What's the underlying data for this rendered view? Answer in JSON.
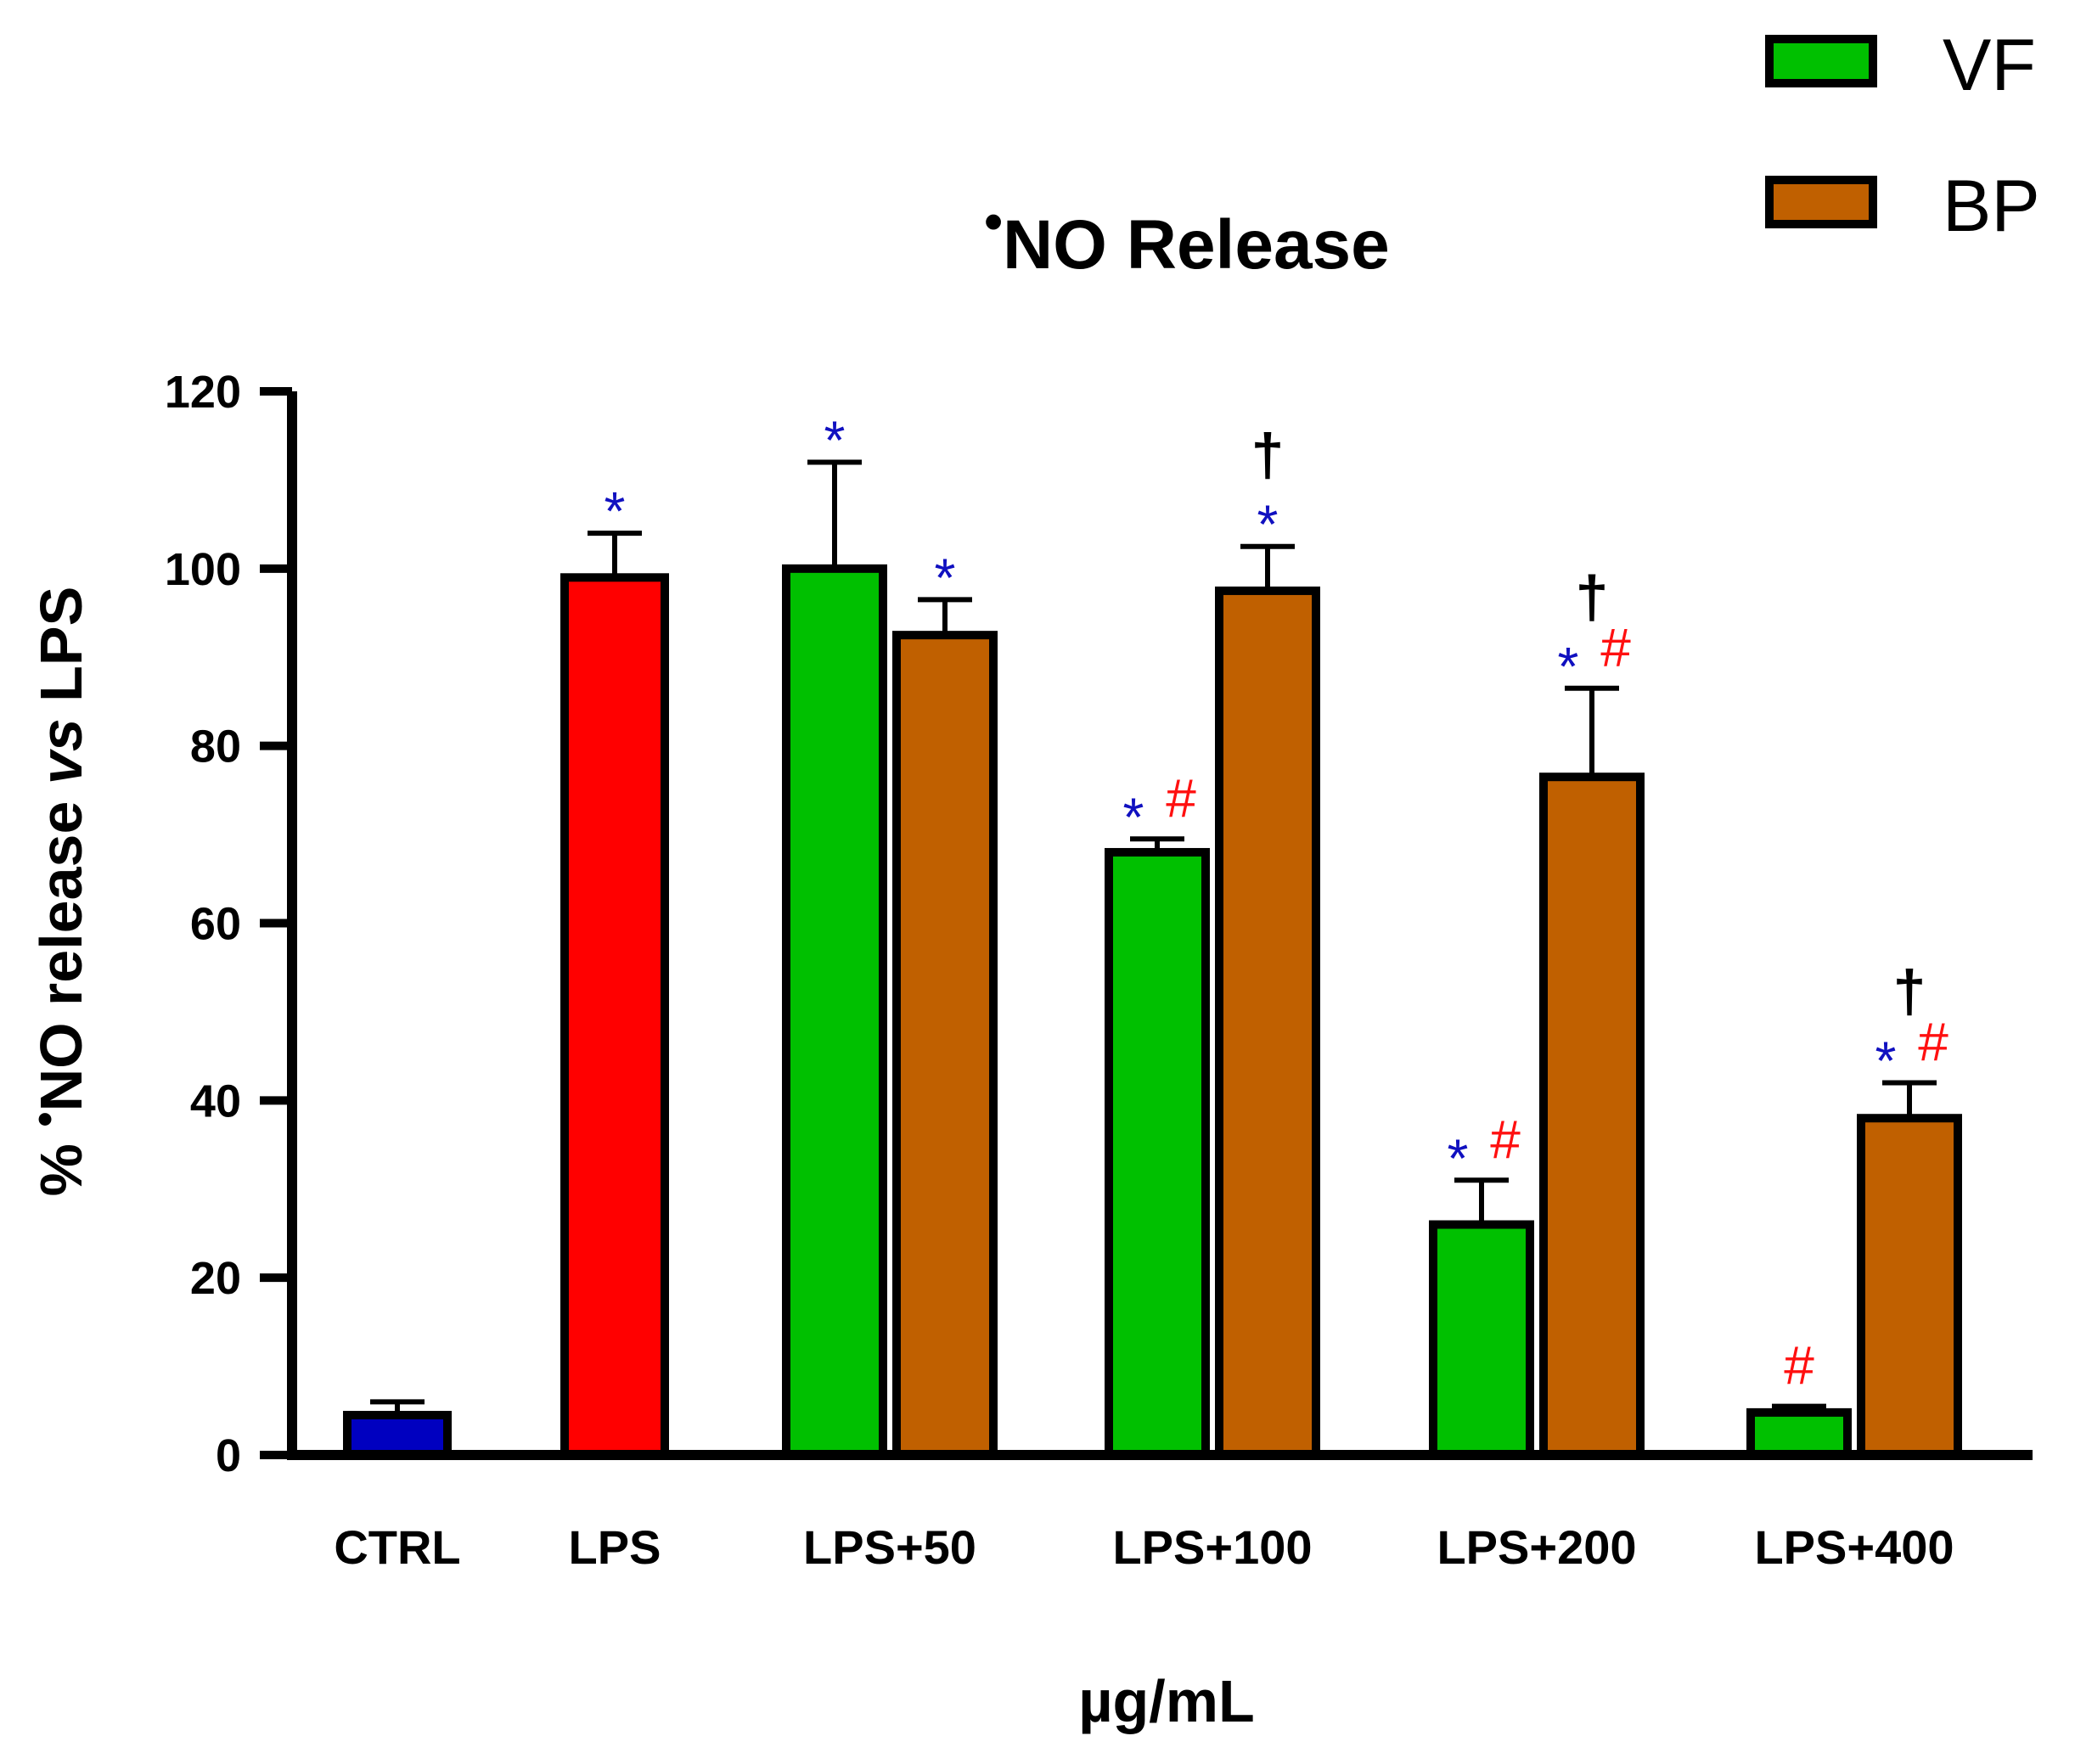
{
  "chart_data": {
    "type": "bar",
    "title": "NO Release",
    "title_radical_dot": "•",
    "ylabel_prefix": "% ",
    "ylabel_dot": "•",
    "ylabel_main": "NO release ",
    "ylabel_italic": "vs",
    "ylabel_suffix": " LPS",
    "xlabel": "µg/mL",
    "ylim": [
      0,
      120
    ],
    "yticks": [
      0,
      20,
      40,
      60,
      80,
      100,
      120
    ],
    "ytick_labels": [
      "0",
      "20",
      "40",
      "60",
      "80",
      "100",
      "120"
    ],
    "categories": [
      "CTRL",
      "LPS",
      "LPS+50",
      "LPS+100",
      "LPS+200",
      "LPS+400"
    ],
    "legend": [
      {
        "label": "VF",
        "color": "#00c000"
      },
      {
        "label": "BP",
        "color": "#c06000"
      }
    ],
    "legend_position": "top-right",
    "bars": [
      {
        "category": "CTRL",
        "series": null,
        "value": 4.5,
        "error": 1.5,
        "color": "#0000c0",
        "marks": []
      },
      {
        "category": "LPS",
        "series": null,
        "value": 99,
        "error": 5,
        "color": "#ff0000",
        "marks": [
          "*"
        ]
      },
      {
        "category": "LPS+50",
        "series": "VF",
        "value": 100,
        "error": 12,
        "color": "#00c000",
        "marks": [
          "*"
        ]
      },
      {
        "category": "LPS+50",
        "series": "BP",
        "value": 92.5,
        "error": 4,
        "color": "#c06000",
        "marks": [
          "*"
        ]
      },
      {
        "category": "LPS+100",
        "series": "VF",
        "value": 68,
        "error": 1.5,
        "color": "#00c000",
        "marks": [
          "*",
          "#"
        ]
      },
      {
        "category": "LPS+100",
        "series": "BP",
        "value": 97.5,
        "error": 5,
        "color": "#c06000",
        "marks": [
          "*"
        ],
        "dagger": "†"
      },
      {
        "category": "LPS+200",
        "series": "VF",
        "value": 26,
        "error": 5,
        "color": "#00c000",
        "marks": [
          "*",
          "#"
        ]
      },
      {
        "category": "LPS+200",
        "series": "BP",
        "value": 76.5,
        "error": 10,
        "color": "#c06000",
        "marks": [
          "*",
          "#"
        ],
        "dagger": "†"
      },
      {
        "category": "LPS+400",
        "series": "VF",
        "value": 4.8,
        "error": 0.7,
        "color": "#00c000",
        "marks": [
          "#"
        ]
      },
      {
        "category": "LPS+400",
        "series": "BP",
        "value": 38,
        "error": 4,
        "color": "#c06000",
        "marks": [
          "*",
          "#"
        ],
        "dagger": "†"
      }
    ],
    "significance_colors": {
      "*": "#1010c0",
      "#": "#ff1010",
      "†": "#000000"
    }
  }
}
